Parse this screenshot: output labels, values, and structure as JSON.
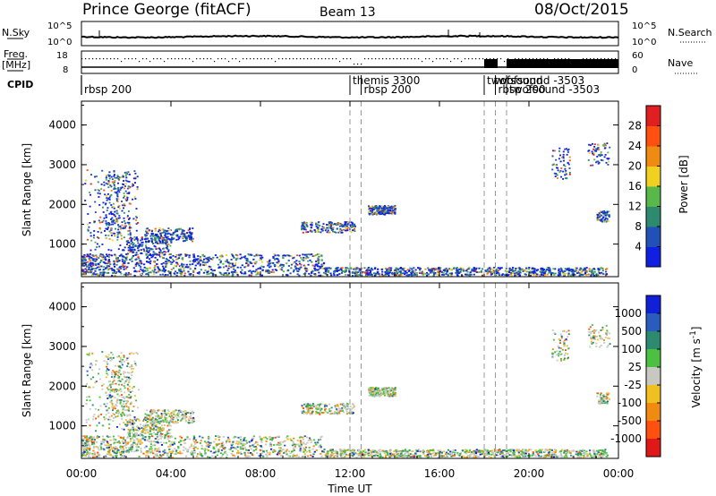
{
  "header": {
    "title": "Prince George (fitACF)",
    "beam": "Beam 13",
    "date": "08/Oct/2015"
  },
  "top_panels": {
    "nsky_label": "N.Sky",
    "nsky_ticks": [
      "10^5",
      "10^0"
    ],
    "nsearch_label": "N.Search",
    "nsearch_ticks": [
      "10^5",
      "10^0"
    ],
    "freq_label_1": "Freq.",
    "freq_label_2": "[MHz]",
    "freq_ticks": [
      "18",
      "8"
    ],
    "nave_label": "Nave",
    "nave_ticks": [
      "60",
      "0"
    ],
    "cpid_label": "CPID"
  },
  "cpid_events": [
    {
      "time_h": 0.0,
      "label": "rbsp 200"
    },
    {
      "time_h": 12.0,
      "label": "themis 3300"
    },
    {
      "time_h": 12.5,
      "label": "rbsp 200"
    },
    {
      "time_h": 18.0,
      "label": "twofsound"
    },
    {
      "time_h": 18.5,
      "label": "rbsp 200"
    },
    {
      "time_h": 19.0,
      "label": "twofsound -3503"
    }
  ],
  "chart_data": [
    {
      "type": "heatmap",
      "ylabel": "Slant Range [km]",
      "yticks": [
        1000,
        2000,
        3000,
        4000
      ],
      "ylim": [
        180,
        4600
      ],
      "xlim": [
        0,
        24
      ],
      "colorbar": {
        "label": "Power [dB]",
        "ticks": [
          "4",
          "8",
          "12",
          "16",
          "20",
          "24",
          "28"
        ],
        "colors": [
          "#1020e0",
          "#2050b8",
          "#2e8a6e",
          "#59b84a",
          "#f0d020",
          "#f08a10",
          "#ff5010",
          "#e02020"
        ]
      }
    },
    {
      "type": "heatmap",
      "ylabel": "Slant Range [km]",
      "yticks": [
        1000,
        2000,
        3000,
        4000
      ],
      "ylim": [
        180,
        4600
      ],
      "xlim": [
        0,
        24
      ],
      "colorbar": {
        "label": "Velocity [m s^-1]",
        "ticks": [
          "1000",
          "500",
          "100",
          "25",
          "-25",
          "-100",
          "-500",
          "-1000"
        ],
        "colors": [
          "#1020d8",
          "#2a5cc0",
          "#2e8a6e",
          "#4cc040",
          "#c8c8c0",
          "#f0c020",
          "#f08a10",
          "#ff5010",
          "#e01818"
        ]
      }
    }
  ],
  "x_axis": {
    "ticks": [
      "00:00",
      "04:00",
      "08:00",
      "12:00",
      "16:00",
      "20:00",
      "00:00"
    ],
    "label": "Time UT"
  }
}
